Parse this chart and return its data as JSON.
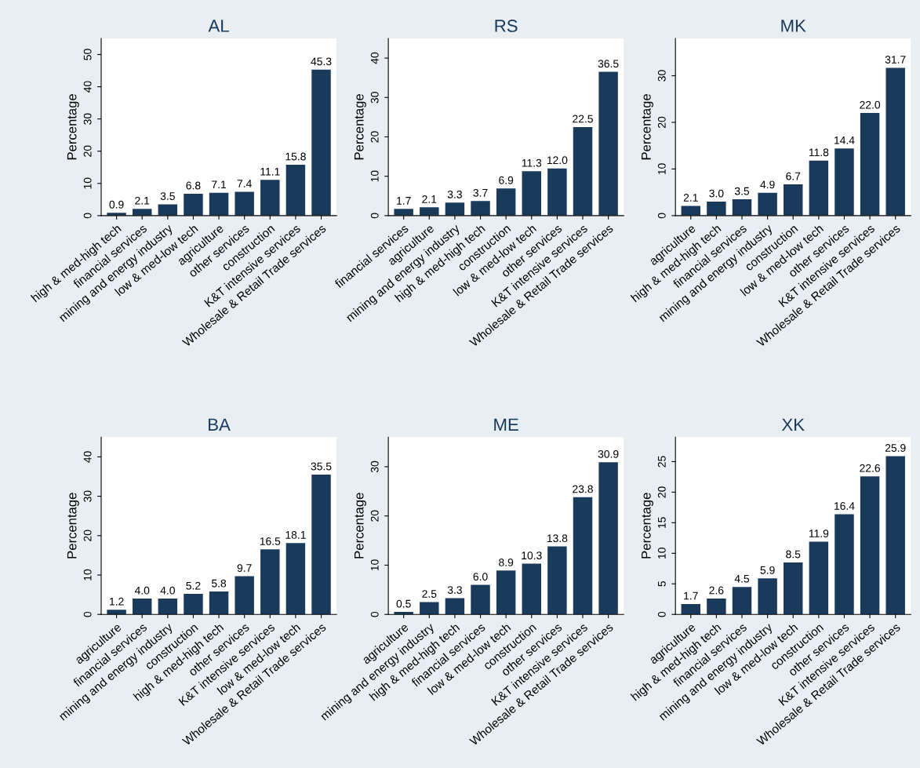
{
  "chart_data": [
    {
      "type": "bar",
      "title": "AL",
      "ylabel": "Percentage",
      "categories": [
        "high & med-high tech",
        "financial services",
        "mining and energy industry",
        "low & med-low tech",
        "agriculture",
        "other services",
        "construction",
        "K&T intensive services",
        "Wholesale & Retail Trade services"
      ],
      "values": [
        0.9,
        2.1,
        3.5,
        6.8,
        7.1,
        7.4,
        11.1,
        15.8,
        45.3
      ],
      "value_labels": [
        "0.9",
        "2.1",
        "3.5",
        "6.8",
        "7.1",
        "7.4",
        "11.1",
        "15.8",
        "45.3"
      ],
      "color": "#1a3a5c",
      "ylim": [
        0,
        55
      ],
      "yticks": [
        0,
        10,
        20,
        30,
        40,
        50
      ],
      "grid": false
    },
    {
      "type": "bar",
      "title": "RS",
      "ylabel": "Percentage",
      "categories": [
        "financial services",
        "agriculture",
        "mining and energy industry",
        "high & med-high tech",
        "construction",
        "low & med-low tech",
        "other services",
        "K&T intensive services",
        "Wholesale & Retail Trade services"
      ],
      "values": [
        1.7,
        2.1,
        3.3,
        3.7,
        6.9,
        11.3,
        12.0,
        22.5,
        36.5
      ],
      "value_labels": [
        "1.7",
        "2.1",
        "3.3",
        "3.7",
        "6.9",
        "11.3",
        "12.0",
        "22.5",
        "36.5"
      ],
      "color": "#1a3a5c",
      "ylim": [
        0,
        45
      ],
      "yticks": [
        0,
        10,
        20,
        30,
        40
      ],
      "grid": false
    },
    {
      "type": "bar",
      "title": "MK",
      "ylabel": "Percentage",
      "categories": [
        "agriculture",
        "high & med-high tech",
        "financial services",
        "mining and energy industry",
        "construction",
        "low & med-low tech",
        "other services",
        "K&T intensive services",
        "Wholesale & Retail Trade services"
      ],
      "values": [
        2.1,
        3.0,
        3.5,
        4.9,
        6.7,
        11.8,
        14.4,
        22.0,
        31.7
      ],
      "value_labels": [
        "2.1",
        "3.0",
        "3.5",
        "4.9",
        "6.7",
        "11.8",
        "14.4",
        "22.0",
        "31.7"
      ],
      "color": "#1a3a5c",
      "ylim": [
        0,
        38
      ],
      "yticks": [
        0,
        10,
        20,
        30
      ],
      "grid": false
    },
    {
      "type": "bar",
      "title": "BA",
      "ylabel": "Percentage",
      "categories": [
        "agriculture",
        "financial services",
        "mining and energy industry",
        "construction",
        "high & med-high tech",
        "other services",
        "K&T intensive services",
        "low & med-low tech",
        "Wholesale & Retail Trade services"
      ],
      "values": [
        1.2,
        4.0,
        4.0,
        5.2,
        5.8,
        9.7,
        16.5,
        18.1,
        35.5
      ],
      "value_labels": [
        "1.2",
        "4.0",
        "4.0",
        "5.2",
        "5.8",
        "9.7",
        "16.5",
        "18.1",
        "35.5"
      ],
      "color": "#1a3a5c",
      "ylim": [
        0,
        45
      ],
      "yticks": [
        0,
        10,
        20,
        30,
        40
      ],
      "grid": false
    },
    {
      "type": "bar",
      "title": "ME",
      "ylabel": "Percentage",
      "categories": [
        "agriculture",
        "mining and energy industry",
        "high & med-high tech",
        "financial services",
        "low & med-low tech",
        "construction",
        "other services",
        "K&T intensive services",
        "Wholesale & Retail Trade services"
      ],
      "values": [
        0.5,
        2.5,
        3.3,
        6.0,
        8.9,
        10.3,
        13.8,
        23.8,
        30.9
      ],
      "value_labels": [
        "0.5",
        "2.5",
        "3.3",
        "6.0",
        "8.9",
        "10.3",
        "13.8",
        "23.8",
        "30.9"
      ],
      "color": "#1a3a5c",
      "ylim": [
        0,
        36
      ],
      "yticks": [
        0,
        10,
        20,
        30
      ],
      "grid": false
    },
    {
      "type": "bar",
      "title": "XK",
      "ylabel": "Percentage",
      "categories": [
        "agriculture",
        "high & med-high tech",
        "financial services",
        "mining and energy industry",
        "low & med-low tech",
        "construction",
        "other services",
        "K&T intensive services",
        "Wholesale & Retail Trade services"
      ],
      "values": [
        1.7,
        2.6,
        4.5,
        5.9,
        8.5,
        11.9,
        16.4,
        22.6,
        25.9
      ],
      "value_labels": [
        "1.7",
        "2.6",
        "4.5",
        "5.9",
        "8.5",
        "11.9",
        "16.4",
        "22.6",
        "25.9"
      ],
      "color": "#1a3a5c",
      "ylim": [
        0,
        29
      ],
      "yticks": [
        0,
        5,
        10,
        15,
        20,
        25
      ],
      "grid": false
    }
  ]
}
